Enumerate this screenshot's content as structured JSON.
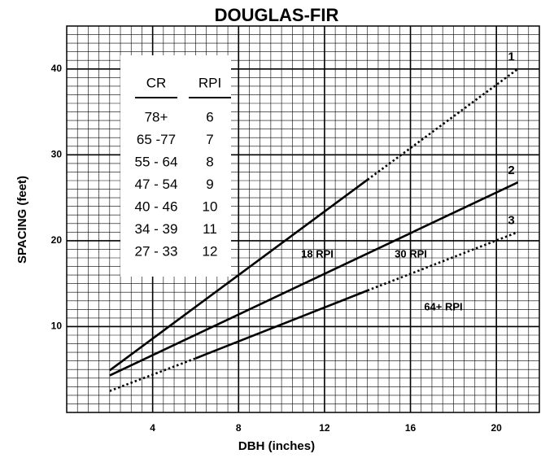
{
  "chart_data": {
    "type": "line",
    "title": "DOUGLAS-FIR",
    "x_label": "DBH (inches)",
    "y_label": "SPACING (feet)",
    "xlim": [
      0,
      22
    ],
    "ylim": [
      0,
      45
    ],
    "xticks": [
      4,
      8,
      12,
      16,
      20
    ],
    "yticks": [
      10,
      20,
      30,
      40
    ],
    "grid": true,
    "minor_xstep": 0.5,
    "minor_ystep": 1,
    "color": "#000000",
    "series": [
      {
        "name": "1",
        "x": [
          2,
          14,
          21
        ],
        "values": [
          4.9,
          27.1,
          40
        ],
        "styles": [
          "solid",
          "dotted"
        ]
      },
      {
        "name": "2",
        "x": [
          2,
          21
        ],
        "values": [
          4.3,
          26.8
        ],
        "styles": [
          "solid"
        ]
      },
      {
        "name": "3",
        "x": [
          2,
          6,
          14,
          21
        ],
        "values": [
          2.5,
          6.3,
          14.2,
          21
        ],
        "styles": [
          "dotted",
          "solid",
          "dotted"
        ]
      }
    ],
    "annotations": [
      "18 RPI",
      "30 RPI",
      "64+ RPI"
    ],
    "table": {
      "columns": [
        "CR",
        "RPI"
      ],
      "rows": [
        [
          "78+",
          6
        ],
        [
          "65 -77",
          7
        ],
        [
          "55 - 64",
          8
        ],
        [
          "47 - 54",
          9
        ],
        [
          "40 - 46",
          10
        ],
        [
          "34 - 39",
          11
        ],
        [
          "27 - 33",
          12
        ]
      ]
    }
  }
}
